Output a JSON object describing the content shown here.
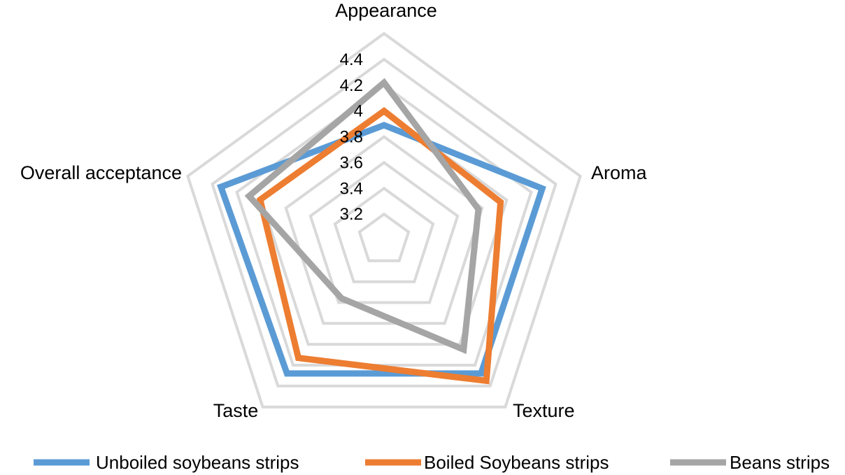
{
  "chart_data": {
    "type": "radar",
    "categories": [
      "Appearance",
      "Aroma",
      "Texture",
      "Taste",
      "Overall acceptance"
    ],
    "series": [
      {
        "name": "Unboiled soybeans strips",
        "values": [
          3.89,
          4.29,
          4.28,
          4.28,
          4.33
        ],
        "color": "#5B9BD5"
      },
      {
        "name": "Boiled Soybeans strips",
        "values": [
          4.0,
          3.95,
          4.35,
          4.13,
          4.01
        ],
        "color": "#ED7D31"
      },
      {
        "name": "Beans strips",
        "values": [
          4.22,
          3.77,
          4.05,
          3.56,
          4.1
        ],
        "color": "#A5A5A5"
      }
    ],
    "r_ticks": [
      "3.2",
      "3.4",
      "3.6",
      "3.8",
      "4",
      "4.2",
      "4.4"
    ],
    "r_range": [
      3.0,
      4.6
    ],
    "grid": true,
    "gridline_color": "#D9D9D9",
    "legend_position": "bottom"
  }
}
